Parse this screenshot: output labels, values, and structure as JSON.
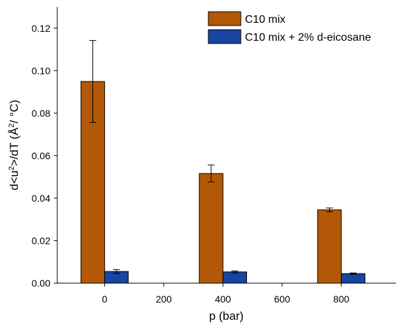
{
  "chart_data": {
    "type": "bar",
    "xlabel": "p (bar)",
    "ylabel_parts": [
      "d<u",
      "2",
      ">/dT (Å",
      "2",
      "/ °C)"
    ],
    "x_axis": {
      "range": [
        -160,
        985
      ],
      "ticks": [
        0,
        200,
        400,
        600,
        800
      ]
    },
    "y_axis": {
      "range": [
        0,
        0.13
      ],
      "ticks": [
        0.0,
        0.02,
        0.04,
        0.06,
        0.08,
        0.1,
        0.12
      ],
      "tick_labels": [
        "0.00",
        "0.02",
        "0.04",
        "0.06",
        "0.08",
        "0.10",
        "0.12"
      ]
    },
    "series": [
      {
        "name": "C10 mix",
        "color": "#B35806",
        "points": [
          {
            "x": -40,
            "value": 0.0949,
            "err": 0.0193
          },
          {
            "x": 360,
            "value": 0.0516,
            "err": 0.004
          },
          {
            "x": 760,
            "value": 0.0345,
            "err": 0.0009
          }
        ]
      },
      {
        "name": "C10 mix + 2% d-eicosane",
        "color": "#1845A0",
        "points": [
          {
            "x": 40,
            "value": 0.0055,
            "err": 0.0009
          },
          {
            "x": 440,
            "value": 0.0053,
            "err": 0.0005
          },
          {
            "x": 840,
            "value": 0.0045,
            "err": 0.0003
          }
        ]
      }
    ],
    "bar_width": 80,
    "legend_position": "top-right"
  }
}
